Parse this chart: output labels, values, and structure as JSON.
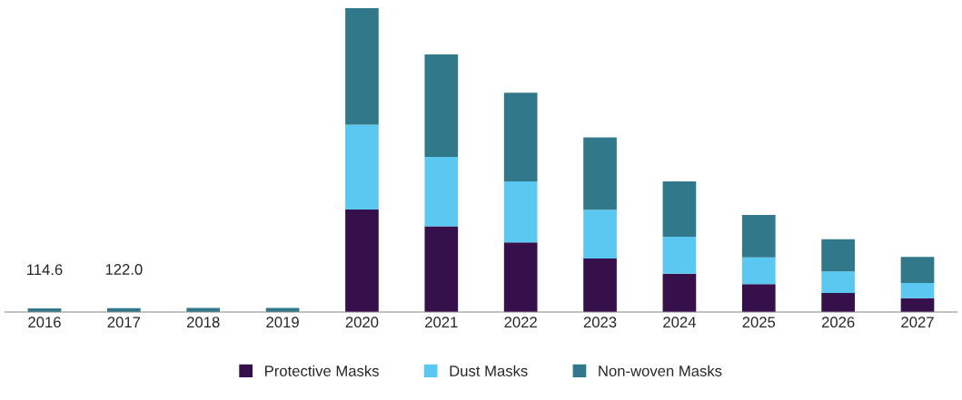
{
  "chart_data": {
    "type": "bar",
    "stacked": true,
    "categories": [
      "2016",
      "2017",
      "2018",
      "2019",
      "2020",
      "2021",
      "2022",
      "2023",
      "2024",
      "2025",
      "2026",
      "2027"
    ],
    "series": [
      {
        "name": "Protective Masks",
        "color": "#35104a",
        "values": [
          0,
          0,
          0,
          0,
          3240,
          2710,
          2200,
          1690,
          1210,
          880,
          600,
          440
        ]
      },
      {
        "name": "Dust Masks",
        "color": "#5bc8f2",
        "values": [
          0,
          0,
          0,
          0,
          2680,
          2190,
          1930,
          1540,
          1170,
          850,
          680,
          480
        ]
      },
      {
        "name": "Non-woven Masks",
        "color": "#31788a",
        "values": [
          114.6,
          122.0,
          125,
          130,
          3690,
          3240,
          2800,
          2290,
          1750,
          1340,
          1020,
          820
        ],
        "value_labels": [
          "114.6",
          "122.0",
          null,
          null,
          null,
          null,
          null,
          null,
          null,
          null,
          null,
          null
        ]
      }
    ],
    "legend": "bottom",
    "grid": false
  }
}
